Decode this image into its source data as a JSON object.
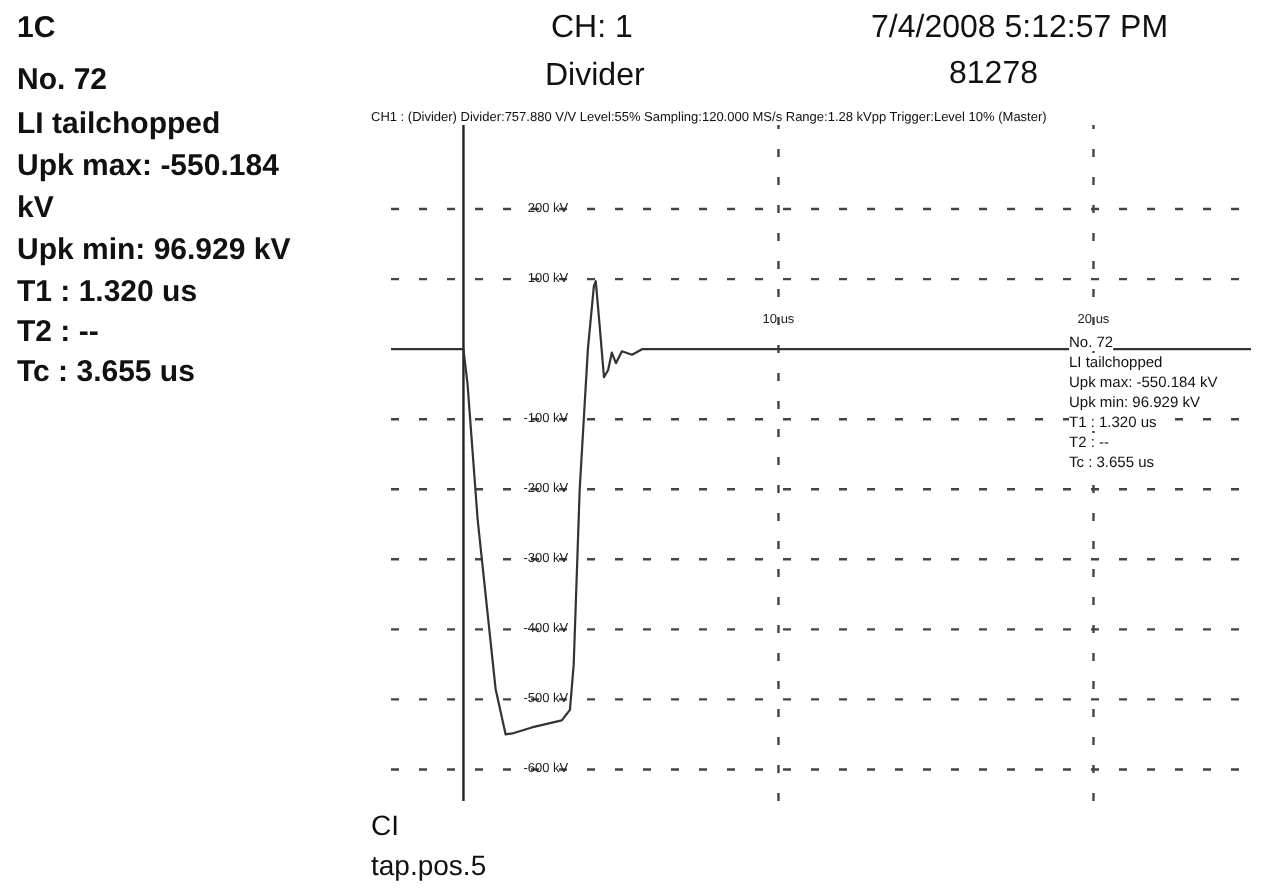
{
  "chart_data": {
    "type": "line",
    "annotations": [
      "1C",
      "No. 72",
      "LI tailchopped",
      "Upk max: -550.184",
      "kV",
      "Upk min:  96.929 kV",
      "T1   : 1.320 us",
      "T2   : --",
      "Tc   : 3.655 us",
      "CH: 1",
      "Divider",
      "7/4/2008 5:12:57 PM",
      "81278",
      "CH1 : (Divider) Divider:757.880 V/V Level:55% Sampling:120.000 MS/s Range:1.28 kVpp Trigger:Level 10% (Master)",
      "No. 72",
      "LI tailchopped",
      "Upk max: -550.184 kV",
      "Upk min: 96.929 kV",
      "T1   : 1.320 us",
      "T2   : --",
      "Tc   : 3.655 us",
      "CI",
      "tap.pos.5"
    ],
    "x": [
      -2.3,
      0,
      0.13,
      0.45,
      1.02,
      1.34,
      1.6,
      2.17,
      3.12,
      3.38,
      3.5,
      3.69,
      3.95,
      4.14,
      4.2,
      4.33,
      4.46,
      4.59,
      4.71,
      4.84,
      5.03,
      5.35,
      5.67,
      25
    ],
    "series": [
      {
        "color": "#333333",
        "values": [
          0,
          0,
          -50,
          -243,
          -485,
          -550,
          -548,
          -540,
          -530,
          -515,
          -450,
          -200,
          0,
          90,
          97,
          30,
          -40,
          -30,
          -5,
          -20,
          -3,
          -8,
          0,
          0
        ]
      }
    ],
    "xlim": [
      -2.3,
      25
    ],
    "ylim": [
      -645,
      320
    ],
    "xticks": [
      {
        "value": 10,
        "label": "10 us"
      },
      {
        "value": 20,
        "label": "20 us"
      }
    ],
    "yticks": [
      {
        "value": 200,
        "label": "200 kV"
      },
      {
        "value": 100,
        "label": "100 kV"
      },
      {
        "value": -100,
        "label": "-100 kV"
      },
      {
        "value": -200,
        "label": "-200 kV"
      },
      {
        "value": -300,
        "label": "-300 kV"
      },
      {
        "value": -400,
        "label": "-400 kV"
      },
      {
        "value": -500,
        "label": "-500 kV"
      },
      {
        "value": -600,
        "label": "-600 kV"
      }
    ],
    "ref_lines": [
      {
        "axis": "x",
        "value": 0,
        "color": "#222222"
      }
    ],
    "grid": true,
    "marker": "none",
    "line_style": "solid"
  }
}
